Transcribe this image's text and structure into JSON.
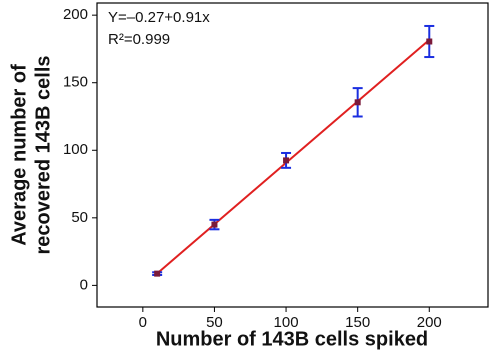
{
  "chart_data": {
    "type": "scatter",
    "x_label": "Number of 143B cells spiked",
    "y_label": [
      "Average number of",
      "recovered 143B cells"
    ],
    "annotations": [
      "Y=–0.27+0.91x",
      "R²=0.999"
    ],
    "x": [
      10,
      50,
      100,
      150,
      200
    ],
    "values": [
      8.7,
      45,
      92.5,
      135.5,
      180.5
    ],
    "errors": [
      1,
      3.5,
      5.5,
      10.5,
      11.5
    ],
    "fit": {
      "intercept": -0.27,
      "slope": 0.91,
      "color": "#e02020"
    },
    "marker_color": "#7a1a3a",
    "error_color": "#1a2ee0",
    "xlim": [
      -32,
      241
    ],
    "xticks": [
      0,
      50,
      100,
      150,
      200
    ],
    "ylim": [
      -16,
      209
    ],
    "yticks": [
      0,
      50,
      100,
      150,
      200
    ]
  }
}
